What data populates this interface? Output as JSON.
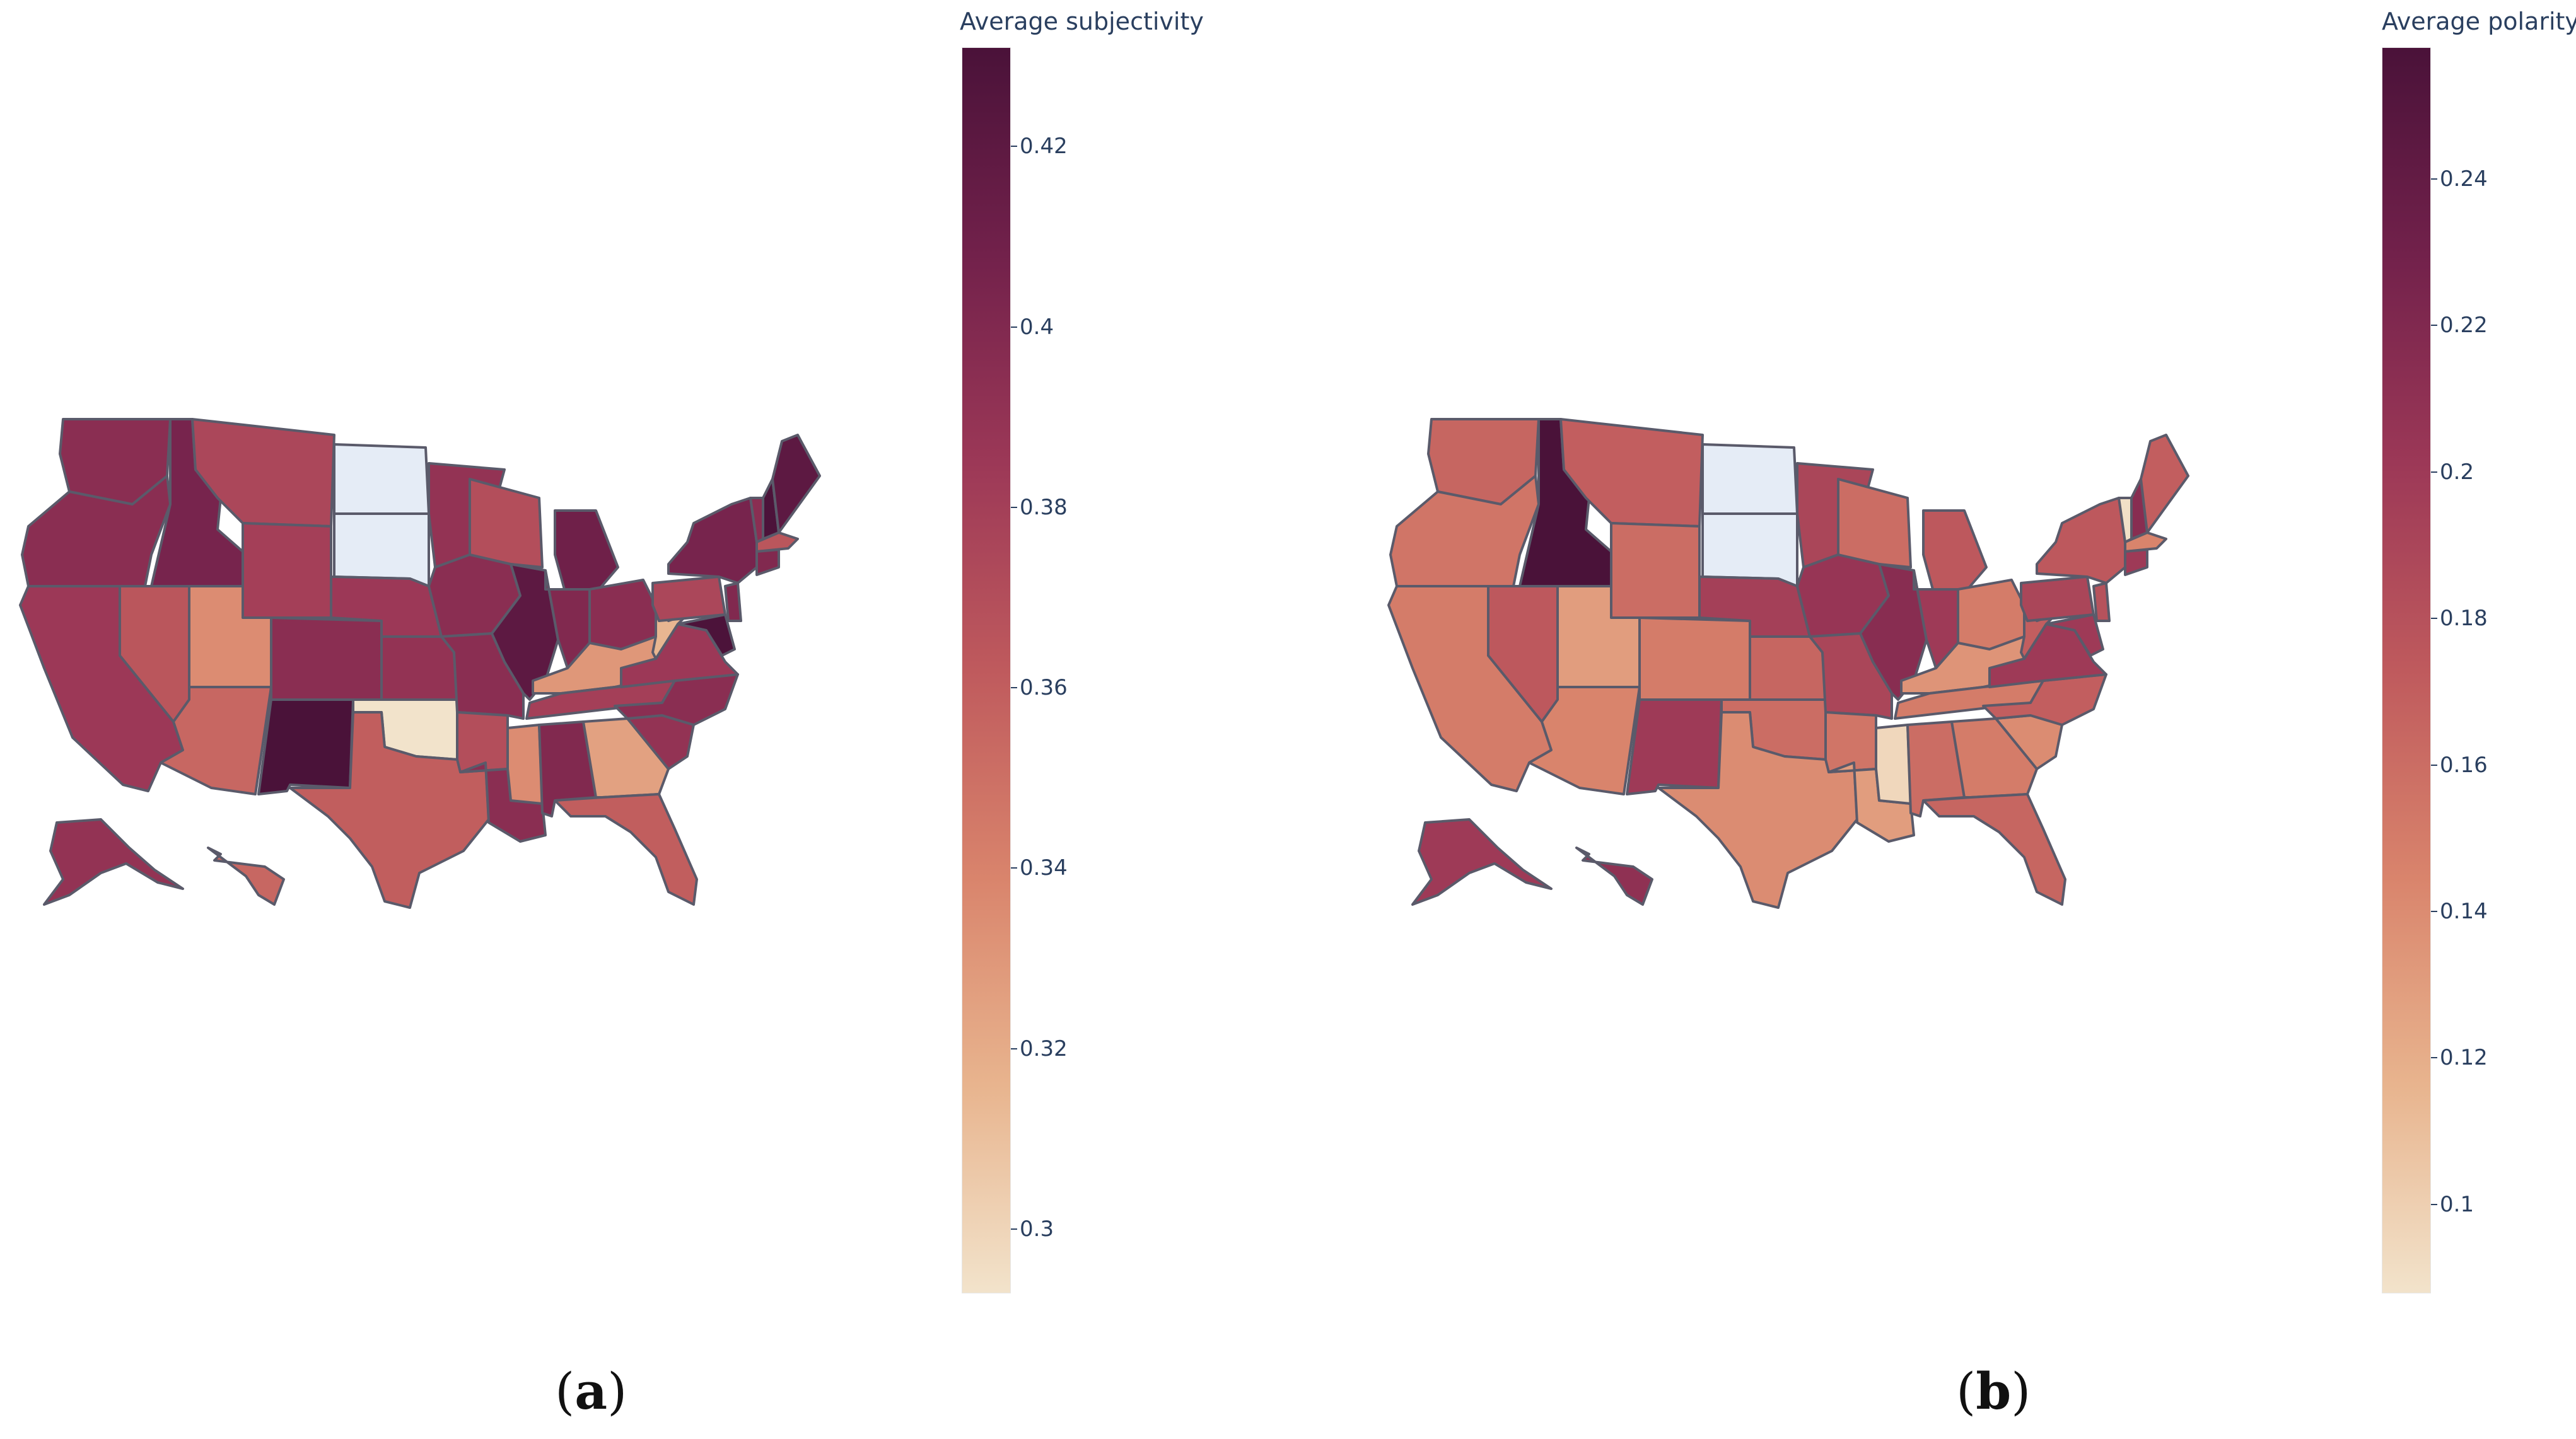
{
  "panels": [
    {
      "id": "a",
      "caption_letter": "a",
      "colorbar": {
        "title": "Average subjectivity",
        "min": 0.293,
        "max": 0.431,
        "ticks": [
          0.3,
          0.32,
          0.34,
          0.36,
          0.38,
          0.4,
          0.42
        ],
        "tick_labels": [
          "0.3",
          "0.32",
          "0.34",
          "0.36",
          "0.38",
          "0.4",
          "0.42"
        ]
      },
      "states": {
        "WA": 0.395,
        "OR": 0.395,
        "CA": 0.385,
        "NV": 0.365,
        "ID": 0.405,
        "MT": 0.375,
        "WY": 0.38,
        "UT": 0.335,
        "CO": 0.395,
        "AZ": 0.355,
        "NM": 0.431,
        "ND": null,
        "SD": null,
        "NE": 0.385,
        "KS": 0.39,
        "OK": 0.293,
        "TX": 0.36,
        "MN": 0.39,
        "IA": 0.395,
        "MO": 0.395,
        "AR": 0.37,
        "LA": 0.395,
        "WI": 0.37,
        "IL": 0.42,
        "MI": 0.41,
        "IN": 0.4,
        "OH": 0.395,
        "KY": 0.33,
        "TN": 0.38,
        "MS": 0.335,
        "AL": 0.4,
        "GA": 0.325,
        "FL": 0.36,
        "SC": 0.39,
        "NC": 0.395,
        "VA": 0.385,
        "WV": 0.315,
        "PA": 0.375,
        "NY": 0.405,
        "ME": 0.42,
        "VT": 0.395,
        "NH": 0.43,
        "MA": 0.365,
        "CT": 0.4,
        "NJ": 0.4,
        "MD": 0.43,
        "AK": 0.39,
        "HI": 0.355
      },
      "missing_color": "#e5ecf6"
    },
    {
      "id": "b",
      "caption_letter": "b",
      "colorbar": {
        "title": "Average polarity",
        "min": 0.088,
        "max": 0.258,
        "ticks": [
          0.1,
          0.12,
          0.14,
          0.16,
          0.18,
          0.2,
          0.22,
          0.24
        ],
        "tick_labels": [
          "0.1",
          "0.12",
          "0.14",
          "0.16",
          "0.18",
          "0.2",
          "0.22",
          "0.24"
        ]
      },
      "states": {
        "WA": 0.165,
        "OR": 0.155,
        "CA": 0.15,
        "NV": 0.175,
        "ID": 0.258,
        "MT": 0.17,
        "WY": 0.16,
        "UT": 0.13,
        "CO": 0.15,
        "AZ": 0.145,
        "NM": 0.2,
        "ND": null,
        "SD": null,
        "NE": 0.195,
        "KS": 0.165,
        "OK": 0.16,
        "TX": 0.14,
        "MN": 0.19,
        "IA": 0.205,
        "MO": 0.19,
        "AR": 0.155,
        "LA": 0.13,
        "WI": 0.16,
        "IL": 0.215,
        "MI": 0.175,
        "IN": 0.2,
        "OH": 0.15,
        "KY": 0.135,
        "TN": 0.15,
        "MS": 0.095,
        "AL": 0.16,
        "GA": 0.15,
        "FL": 0.165,
        "SC": 0.14,
        "NC": 0.17,
        "VA": 0.2,
        "WV": 0.17,
        "PA": 0.19,
        "NY": 0.175,
        "ME": 0.17,
        "VT": 0.09,
        "NH": 0.215,
        "MA": 0.145,
        "CT": 0.2,
        "NJ": 0.18,
        "MD": 0.2,
        "AK": 0.2,
        "HI": 0.21
      },
      "missing_color": "#e5ecf6"
    }
  ],
  "colorscale": [
    "#f2e3cb",
    "#e8b48e",
    "#d9846c",
    "#bf5a5d",
    "#9c3857",
    "#72214b",
    "#4a1239"
  ]
}
